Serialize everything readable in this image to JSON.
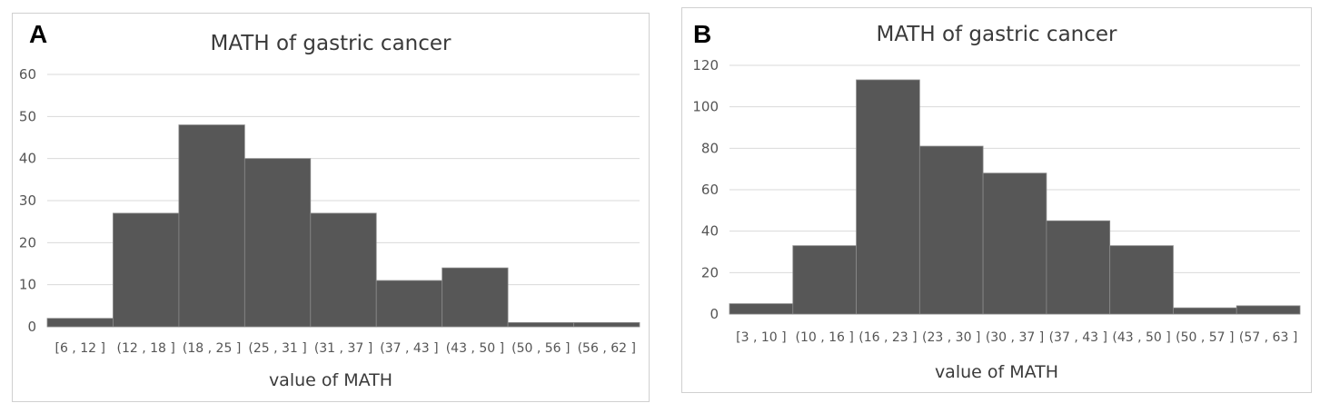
{
  "chart_data": [
    {
      "type": "bar",
      "panel_letter": "A",
      "title": "MATH of gastric cancer",
      "xlabel": "value of MATH",
      "ylabel": "",
      "ylim": [
        0,
        60
      ],
      "yticks": [
        0,
        10,
        20,
        30,
        40,
        50,
        60
      ],
      "grid": true,
      "bar_color": "#575757",
      "categories": [
        "[6 , 12 ]",
        "(12 , 18 ]",
        "(18 , 25 ]",
        "(25 , 31 ]",
        "(31 , 37 ]",
        "(37 , 43 ]",
        "(43 , 50 ]",
        "(50 , 56 ]",
        "(56 , 62 ]"
      ],
      "values": [
        2,
        27,
        48,
        40,
        27,
        11,
        14,
        1,
        1
      ]
    },
    {
      "type": "bar",
      "panel_letter": "B",
      "title": "MATH of gastric cancer",
      "xlabel": "value of MATH",
      "ylabel": "",
      "ylim": [
        0,
        120
      ],
      "yticks": [
        0,
        20,
        40,
        60,
        80,
        100,
        120
      ],
      "grid": true,
      "bar_color": "#575757",
      "categories": [
        "[3 , 10 ]",
        "(10 , 16 ]",
        "(16 , 23 ]",
        "(23 , 30 ]",
        "(30 , 37 ]",
        "(37 , 43 ]",
        "(43 , 50 ]",
        "(50 , 57 ]",
        "(57 , 63 ]"
      ],
      "values": [
        5,
        33,
        113,
        81,
        68,
        45,
        33,
        3,
        4
      ]
    }
  ]
}
